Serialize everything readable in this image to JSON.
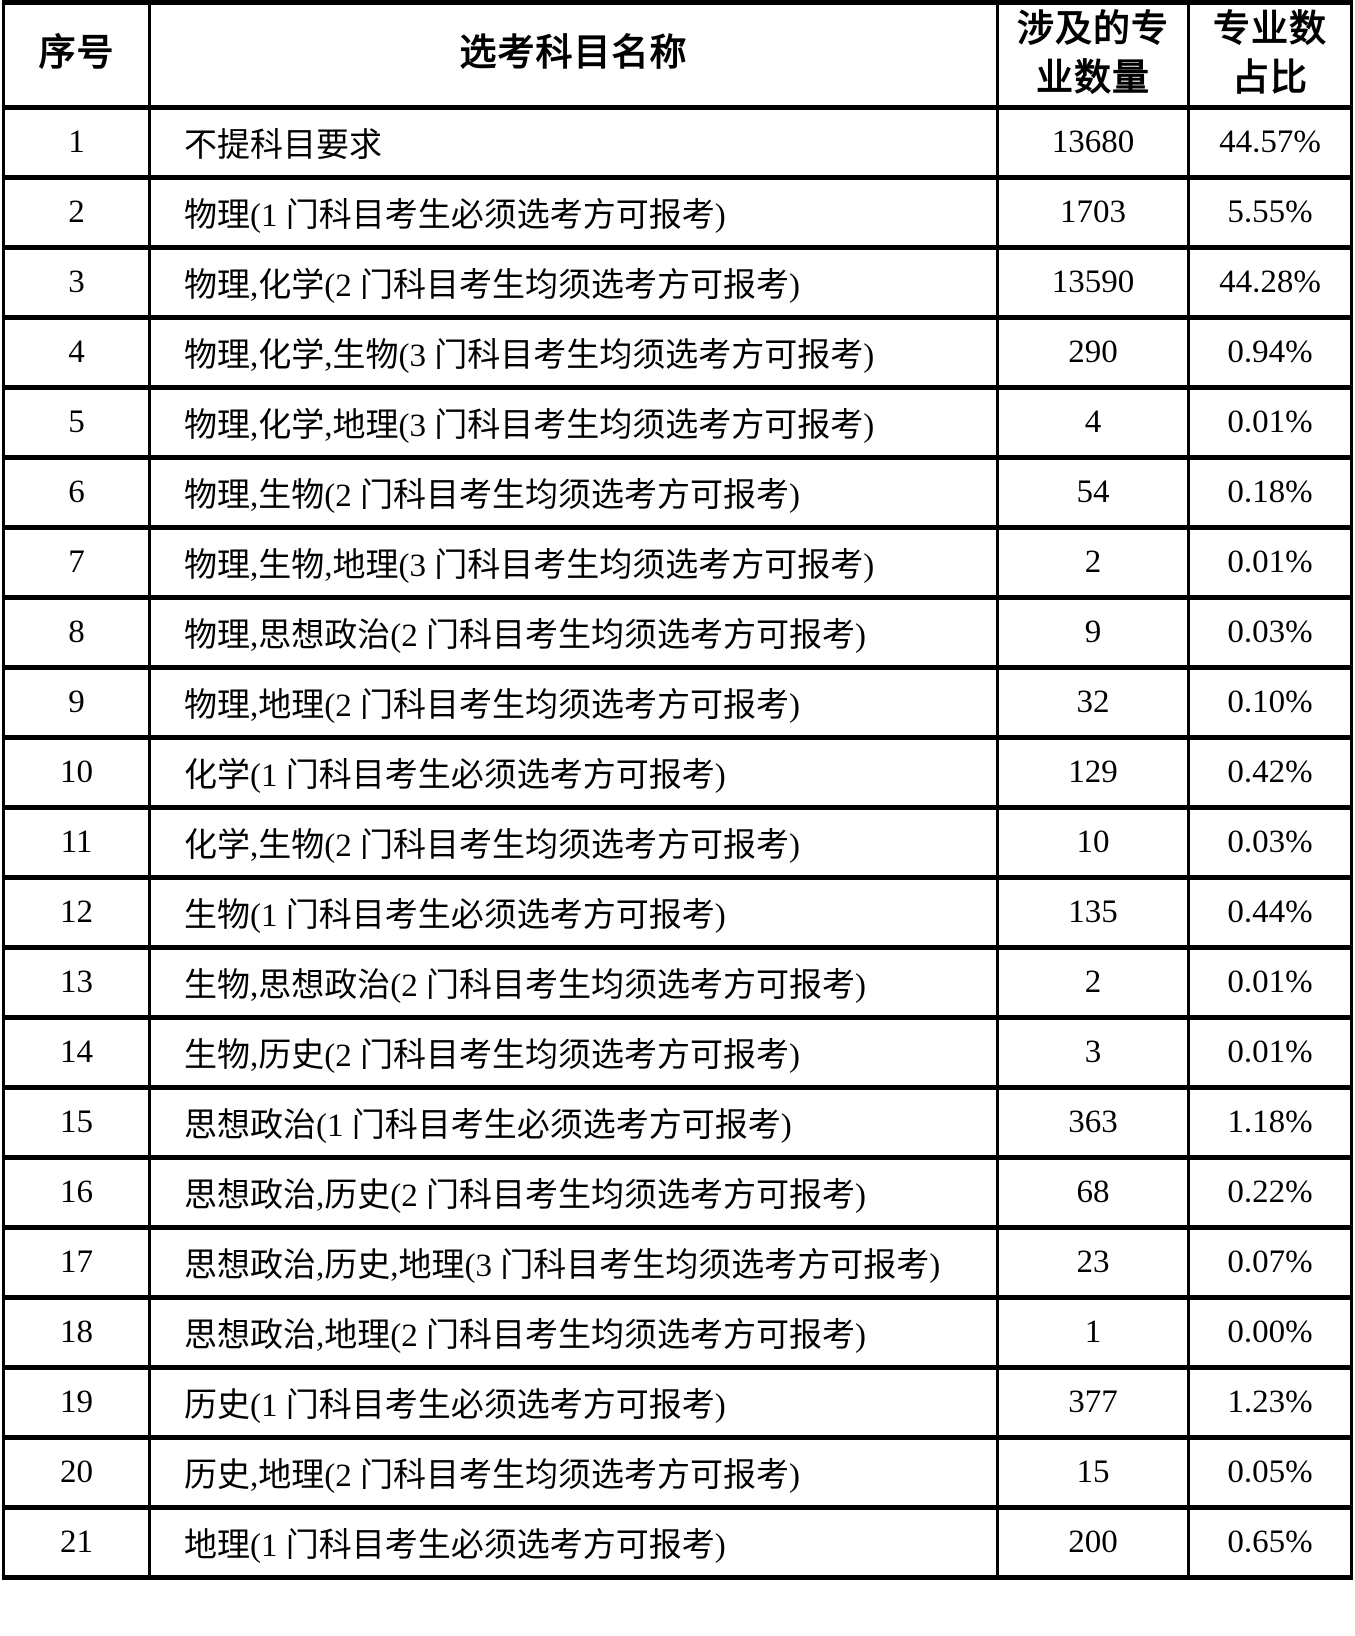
{
  "table": {
    "columns": [
      {
        "key": "index",
        "label": "序号"
      },
      {
        "key": "subject",
        "label": "选考科目名称"
      },
      {
        "key": "count",
        "label": "涉及的专\n业数量"
      },
      {
        "key": "percent",
        "label": "专业数\n占比"
      }
    ],
    "rows": [
      {
        "index": "1",
        "subject": "不提科目要求",
        "count": "13680",
        "percent": "44.57%"
      },
      {
        "index": "2",
        "subject": "物理(1 门科目考生必须选考方可报考)",
        "count": "1703",
        "percent": "5.55%"
      },
      {
        "index": "3",
        "subject": "物理,化学(2 门科目考生均须选考方可报考)",
        "count": "13590",
        "percent": "44.28%"
      },
      {
        "index": "4",
        "subject": "物理,化学,生物(3 门科目考生均须选考方可报考)",
        "count": "290",
        "percent": "0.94%"
      },
      {
        "index": "5",
        "subject": "物理,化学,地理(3 门科目考生均须选考方可报考)",
        "count": "4",
        "percent": "0.01%"
      },
      {
        "index": "6",
        "subject": "物理,生物(2 门科目考生均须选考方可报考)",
        "count": "54",
        "percent": "0.18%"
      },
      {
        "index": "7",
        "subject": "物理,生物,地理(3 门科目考生均须选考方可报考)",
        "count": "2",
        "percent": "0.01%"
      },
      {
        "index": "8",
        "subject": "物理,思想政治(2 门科目考生均须选考方可报考)",
        "count": "9",
        "percent": "0.03%"
      },
      {
        "index": "9",
        "subject": "物理,地理(2 门科目考生均须选考方可报考)",
        "count": "32",
        "percent": "0.10%"
      },
      {
        "index": "10",
        "subject": "化学(1 门科目考生必须选考方可报考)",
        "count": "129",
        "percent": "0.42%"
      },
      {
        "index": "11",
        "subject": "化学,生物(2 门科目考生均须选考方可报考)",
        "count": "10",
        "percent": "0.03%"
      },
      {
        "index": "12",
        "subject": "生物(1 门科目考生必须选考方可报考)",
        "count": "135",
        "percent": "0.44%"
      },
      {
        "index": "13",
        "subject": "生物,思想政治(2 门科目考生均须选考方可报考)",
        "count": "2",
        "percent": "0.01%"
      },
      {
        "index": "14",
        "subject": "生物,历史(2 门科目考生均须选考方可报考)",
        "count": "3",
        "percent": "0.01%"
      },
      {
        "index": "15",
        "subject": "思想政治(1 门科目考生必须选考方可报考)",
        "count": "363",
        "percent": "1.18%"
      },
      {
        "index": "16",
        "subject": "思想政治,历史(2 门科目考生均须选考方可报考)",
        "count": "68",
        "percent": "0.22%"
      },
      {
        "index": "17",
        "subject": "思想政治,历史,地理(3 门科目考生均须选考方可报考)",
        "count": "23",
        "percent": "0.07%"
      },
      {
        "index": "18",
        "subject": "思想政治,地理(2 门科目考生均须选考方可报考)",
        "count": "1",
        "percent": "0.00%"
      },
      {
        "index": "19",
        "subject": "历史(1 门科目考生必须选考方可报考)",
        "count": "377",
        "percent": "1.23%"
      },
      {
        "index": "20",
        "subject": "历史,地理(2 门科目考生均须选考方可报考)",
        "count": "15",
        "percent": "0.05%"
      },
      {
        "index": "21",
        "subject": "地理(1 门科目考生必须选考方可报考)",
        "count": "200",
        "percent": "0.65%"
      }
    ]
  },
  "colors": {
    "text": "#000000",
    "border": "#000000",
    "background": "#ffffff"
  }
}
